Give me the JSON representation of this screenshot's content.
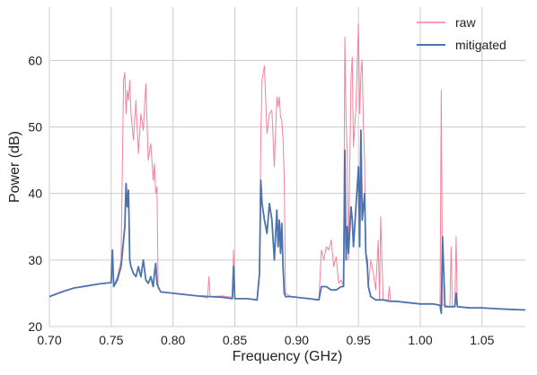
{
  "chart_data": {
    "type": "line",
    "xlabel": "Frequency (GHz)",
    "ylabel": "Power (dB)",
    "xlim": [
      0.7,
      1.085
    ],
    "ylim": [
      20,
      68
    ],
    "xticks": [
      0.7,
      0.75,
      0.8,
      0.85,
      0.9,
      0.95,
      1.0,
      1.05
    ],
    "xtick_labels": [
      "0.70",
      "0.75",
      "0.80",
      "0.85",
      "0.90",
      "0.95",
      "1.00",
      "1.05"
    ],
    "yticks": [
      20,
      30,
      40,
      50,
      60
    ],
    "ytick_labels": [
      "20",
      "30",
      "40",
      "50",
      "60"
    ],
    "grid": true,
    "legend_position": "top-right",
    "series": [
      {
        "name": "raw",
        "color": "#f7819b",
        "x": [
          0.7,
          0.71,
          0.72,
          0.73,
          0.74,
          0.75,
          0.751,
          0.752,
          0.755,
          0.758,
          0.76,
          0.761,
          0.762,
          0.763,
          0.764,
          0.765,
          0.766,
          0.767,
          0.768,
          0.77,
          0.772,
          0.774,
          0.776,
          0.778,
          0.78,
          0.782,
          0.784,
          0.785,
          0.786,
          0.787,
          0.788,
          0.79,
          0.8,
          0.81,
          0.82,
          0.828,
          0.829,
          0.83,
          0.84,
          0.848,
          0.849,
          0.85,
          0.86,
          0.868,
          0.87,
          0.871,
          0.872,
          0.874,
          0.876,
          0.878,
          0.88,
          0.882,
          0.884,
          0.885,
          0.886,
          0.887,
          0.888,
          0.889,
          0.89,
          0.891,
          0.895,
          0.9,
          0.905,
          0.91,
          0.918,
          0.92,
          0.922,
          0.924,
          0.926,
          0.928,
          0.93,
          0.932,
          0.934,
          0.936,
          0.938,
          0.939,
          0.94,
          0.941,
          0.942,
          0.944,
          0.945,
          0.946,
          0.948,
          0.95,
          0.951,
          0.952,
          0.953,
          0.954,
          0.955,
          0.956,
          0.957,
          0.958,
          0.96,
          0.962,
          0.964,
          0.966,
          0.967,
          0.968,
          0.97,
          0.974,
          0.975,
          0.976,
          0.98,
          0.99,
          1.0,
          1.01,
          1.016,
          1.017,
          1.018,
          1.02,
          1.024,
          1.025,
          1.026,
          1.028,
          1.029,
          1.03,
          1.04,
          1.05,
          1.06,
          1.07,
          1.085
        ],
        "y": [
          24.5,
          25.2,
          25.8,
          26.1,
          26.4,
          26.6,
          31.2,
          26.2,
          27.5,
          30.0,
          57.0,
          58.2,
          52.0,
          55.5,
          54.0,
          57.0,
          52.0,
          50.0,
          48.0,
          54.0,
          46.0,
          52.0,
          49.5,
          56.5,
          45.0,
          47.5,
          42.0,
          44.5,
          40.0,
          41.0,
          25.8,
          25.2,
          25.0,
          24.8,
          24.6,
          24.3,
          27.5,
          24.5,
          24.6,
          24.4,
          31.5,
          24.2,
          24.2,
          24.0,
          28.0,
          48.0,
          57.0,
          59.2,
          49.0,
          52.0,
          52.5,
          44.0,
          54.5,
          53.0,
          54.5,
          51.5,
          51.0,
          48.0,
          42.0,
          25.0,
          24.5,
          24.4,
          24.3,
          24.2,
          24.0,
          31.5,
          30.0,
          32.0,
          31.5,
          33.0,
          29.0,
          30.5,
          26.5,
          27.0,
          26.0,
          63.5,
          51.0,
          45.0,
          30.0,
          57.5,
          60.5,
          47.0,
          53.0,
          65.5,
          52.0,
          58.0,
          60.0,
          50.0,
          45.0,
          30.0,
          29.0,
          26.0,
          30.0,
          28.0,
          25.5,
          33.0,
          24.0,
          36.5,
          24.0,
          24.0,
          26.0,
          23.8,
          23.8,
          23.6,
          23.4,
          23.4,
          23.2,
          55.5,
          23.2,
          23.2,
          23.0,
          32.0,
          23.0,
          23.0,
          33.5,
          23.0,
          22.8,
          22.8,
          22.7,
          22.6,
          22.5
        ]
      },
      {
        "name": "mitigated",
        "color": "#4c72b0",
        "x": [
          0.7,
          0.71,
          0.72,
          0.73,
          0.74,
          0.75,
          0.751,
          0.752,
          0.755,
          0.758,
          0.76,
          0.761,
          0.762,
          0.763,
          0.764,
          0.765,
          0.766,
          0.768,
          0.77,
          0.772,
          0.774,
          0.776,
          0.778,
          0.78,
          0.782,
          0.784,
          0.785,
          0.786,
          0.787,
          0.788,
          0.79,
          0.8,
          0.81,
          0.82,
          0.83,
          0.84,
          0.848,
          0.849,
          0.85,
          0.86,
          0.868,
          0.87,
          0.871,
          0.872,
          0.874,
          0.876,
          0.878,
          0.88,
          0.882,
          0.884,
          0.885,
          0.886,
          0.887,
          0.888,
          0.889,
          0.89,
          0.891,
          0.895,
          0.9,
          0.905,
          0.91,
          0.918,
          0.92,
          0.924,
          0.928,
          0.932,
          0.936,
          0.938,
          0.939,
          0.94,
          0.941,
          0.942,
          0.944,
          0.945,
          0.946,
          0.948,
          0.95,
          0.951,
          0.952,
          0.953,
          0.954,
          0.955,
          0.956,
          0.957,
          0.958,
          0.96,
          0.964,
          0.966,
          0.968,
          0.97,
          0.975,
          0.98,
          0.99,
          1.0,
          1.01,
          1.016,
          1.017,
          1.018,
          1.02,
          1.028,
          1.029,
          1.03,
          1.04,
          1.05,
          1.06,
          1.07,
          1.085
        ],
        "y": [
          24.5,
          25.2,
          25.8,
          26.1,
          26.4,
          26.6,
          31.5,
          26.0,
          27.0,
          29.0,
          33.0,
          35.0,
          41.5,
          38.0,
          40.5,
          30.0,
          29.0,
          28.0,
          27.5,
          29.0,
          27.5,
          30.0,
          27.0,
          26.5,
          27.5,
          26.0,
          28.0,
          29.5,
          26.5,
          26.0,
          25.2,
          25.0,
          24.8,
          24.6,
          24.5,
          24.4,
          24.2,
          29.0,
          24.2,
          24.2,
          24.0,
          28.0,
          42.0,
          38.5,
          36.0,
          34.0,
          38.5,
          36.0,
          30.0,
          37.5,
          32.0,
          36.0,
          31.0,
          35.5,
          29.0,
          25.0,
          24.5,
          24.5,
          24.4,
          24.3,
          24.2,
          24.0,
          26.0,
          26.0,
          25.5,
          25.5,
          26.0,
          26.0,
          46.5,
          30.0,
          35.0,
          31.0,
          38.0,
          36.0,
          32.0,
          38.0,
          44.0,
          32.0,
          49.5,
          36.0,
          38.0,
          40.0,
          31.0,
          30.0,
          26.0,
          24.5,
          24.0,
          24.0,
          24.0,
          24.0,
          23.8,
          23.8,
          23.6,
          23.4,
          23.4,
          23.2,
          22.0,
          33.5,
          23.0,
          23.0,
          25.0,
          23.0,
          22.8,
          22.8,
          22.7,
          22.6,
          22.5
        ]
      }
    ]
  }
}
